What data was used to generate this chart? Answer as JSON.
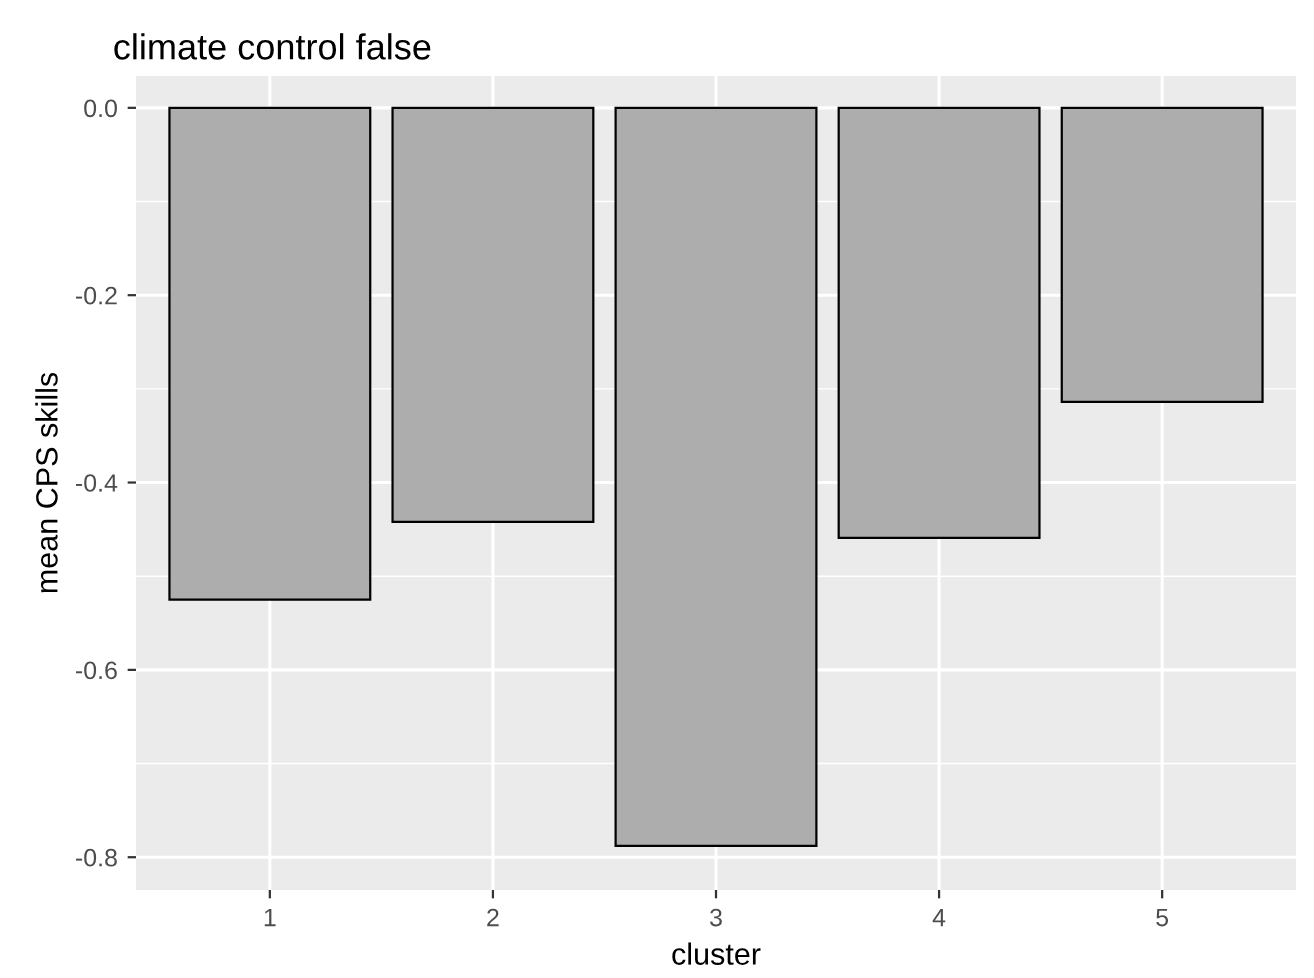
{
  "chart_data": {
    "type": "bar",
    "title": "climate control false",
    "xlabel": "cluster",
    "ylabel": "mean CPS skills",
    "categories": [
      "1",
      "2",
      "3",
      "4",
      "5"
    ],
    "values": [
      -0.525,
      -0.442,
      -0.788,
      -0.459,
      -0.314
    ],
    "color": "#adadad",
    "ylim": [
      -0.835,
      0.034
    ],
    "yticks": [
      {
        "value": 0.0,
        "label": "0.0"
      },
      {
        "value": -0.2,
        "label": "-0.2"
      },
      {
        "value": -0.4,
        "label": "-0.4"
      },
      {
        "value": -0.6,
        "label": "-0.6"
      },
      {
        "value": -0.8,
        "label": "-0.8"
      }
    ],
    "grid": true,
    "legend": false
  }
}
